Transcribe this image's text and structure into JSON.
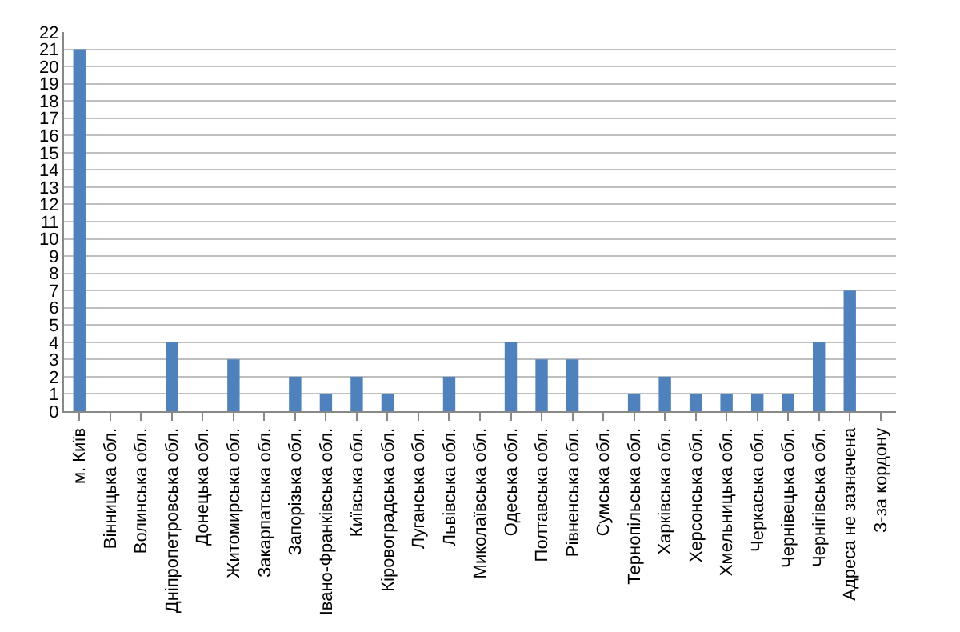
{
  "chart_data": {
    "type": "bar",
    "categories": [
      "м. Київ",
      "Вінницька обл.",
      "Волинська обл.",
      "Дніпропетровська обл.",
      "Донецька обл.",
      "Житомирська обл.",
      "Закарпатська обл.",
      "Запорізька обл.",
      "Івано-Франківська обл.",
      "Київська обл.",
      "Кіровоградська обл.",
      "Луганська обл.",
      "Львівська обл.",
      "Миколаївська обл.",
      "Одеська обл.",
      "Полтавська обл.",
      "Рівненська обл.",
      "Сумська обл.",
      "Тернопільська обл.",
      "Харківська обл.",
      "Херсонська обл.",
      "Хмельницька обл.",
      "Черкаська обл.",
      "Чернівецька обл.",
      "Чернігівська обл.",
      "Адреса не зазначена",
      "З-за кордону"
    ],
    "values": [
      21,
      0,
      0,
      4,
      0,
      3,
      0,
      2,
      1,
      2,
      1,
      0,
      2,
      0,
      4,
      3,
      3,
      0,
      1,
      2,
      1,
      1,
      1,
      1,
      4,
      7,
      0
    ],
    "color": "#4f81bd",
    "ylim": [
      0,
      22
    ],
    "yticks": [
      0,
      1,
      2,
      3,
      4,
      5,
      6,
      7,
      8,
      9,
      10,
      11,
      12,
      13,
      14,
      15,
      16,
      17,
      18,
      19,
      20,
      21,
      22
    ],
    "grid": "y"
  }
}
